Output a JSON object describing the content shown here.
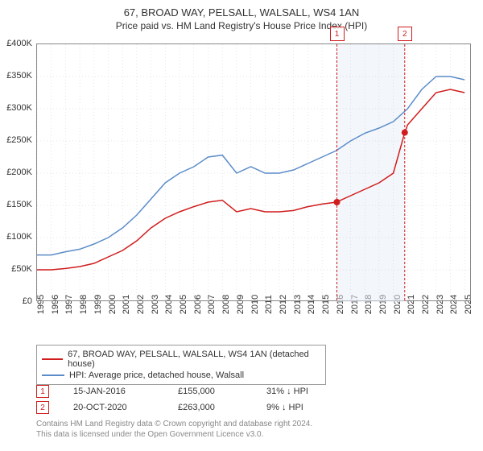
{
  "title": "67, BROAD WAY, PELSALL, WALSALL, WS4 1AN",
  "subtitle": "Price paid vs. HM Land Registry's House Price Index (HPI)",
  "chart": {
    "type": "line",
    "background_color": "#ffffff",
    "grid_color": "#aaaaaa",
    "xlim": [
      1995,
      2025.5
    ],
    "ylim": [
      0,
      400000
    ],
    "ytick_step": 50000,
    "ytick_labels": [
      "£0",
      "£50K",
      "£100K",
      "£150K",
      "£200K",
      "£250K",
      "£300K",
      "£350K",
      "£400K"
    ],
    "xticks": [
      1995,
      1996,
      1997,
      1998,
      1999,
      2000,
      2001,
      2002,
      2003,
      2004,
      2005,
      2006,
      2007,
      2008,
      2009,
      2010,
      2011,
      2012,
      2013,
      2014,
      2015,
      2016,
      2017,
      2018,
      2019,
      2020,
      2021,
      2022,
      2023,
      2024,
      2025
    ],
    "title_fontsize": 13,
    "label_fontsize": 11,
    "series": [
      {
        "name": "price_paid",
        "label": "67, BROAD WAY, PELSALL, WALSALL, WS4 1AN (detached house)",
        "color": "#d01c1c",
        "line_width": 1.5,
        "points": [
          [
            1995,
            50000
          ],
          [
            1996,
            50000
          ],
          [
            1997,
            52000
          ],
          [
            1998,
            55000
          ],
          [
            1999,
            60000
          ],
          [
            2000,
            70000
          ],
          [
            2001,
            80000
          ],
          [
            2002,
            95000
          ],
          [
            2003,
            115000
          ],
          [
            2004,
            130000
          ],
          [
            2005,
            140000
          ],
          [
            2006,
            148000
          ],
          [
            2007,
            155000
          ],
          [
            2008,
            158000
          ],
          [
            2009,
            140000
          ],
          [
            2010,
            145000
          ],
          [
            2011,
            140000
          ],
          [
            2012,
            140000
          ],
          [
            2013,
            142000
          ],
          [
            2014,
            148000
          ],
          [
            2015,
            152000
          ],
          [
            2016,
            155000
          ],
          [
            2017,
            165000
          ],
          [
            2018,
            175000
          ],
          [
            2019,
            185000
          ],
          [
            2020,
            200000
          ],
          [
            2020.8,
            263000
          ],
          [
            2021,
            275000
          ],
          [
            2022,
            300000
          ],
          [
            2023,
            325000
          ],
          [
            2024,
            330000
          ],
          [
            2025,
            325000
          ]
        ]
      },
      {
        "name": "hpi",
        "label": "HPI: Average price, detached house, Walsall",
        "color": "#5b8cc9",
        "line_width": 1.5,
        "points": [
          [
            1995,
            73000
          ],
          [
            1996,
            73000
          ],
          [
            1997,
            78000
          ],
          [
            1998,
            82000
          ],
          [
            1999,
            90000
          ],
          [
            2000,
            100000
          ],
          [
            2001,
            115000
          ],
          [
            2002,
            135000
          ],
          [
            2003,
            160000
          ],
          [
            2004,
            185000
          ],
          [
            2005,
            200000
          ],
          [
            2006,
            210000
          ],
          [
            2007,
            225000
          ],
          [
            2008,
            228000
          ],
          [
            2009,
            200000
          ],
          [
            2010,
            210000
          ],
          [
            2011,
            200000
          ],
          [
            2012,
            200000
          ],
          [
            2013,
            205000
          ],
          [
            2014,
            215000
          ],
          [
            2015,
            225000
          ],
          [
            2016,
            235000
          ],
          [
            2017,
            250000
          ],
          [
            2018,
            262000
          ],
          [
            2019,
            270000
          ],
          [
            2020,
            280000
          ],
          [
            2021,
            300000
          ],
          [
            2022,
            330000
          ],
          [
            2023,
            350000
          ],
          [
            2024,
            350000
          ],
          [
            2025,
            345000
          ]
        ]
      }
    ],
    "markers": [
      {
        "id": "1",
        "x": 2016.04,
        "color": "#d01c1c",
        "dot_y": 155000
      },
      {
        "id": "2",
        "x": 2020.8,
        "color": "#d01c1c",
        "dot_y": 263000
      }
    ],
    "shaded": {
      "from": 2016.04,
      "to": 2020.8,
      "color": "#e8eef7",
      "opacity": 0.5
    }
  },
  "transactions": [
    {
      "id": "1",
      "date": "15-JAN-2016",
      "price": "£155,000",
      "delta": "31% ↓ HPI",
      "color": "#d01c1c"
    },
    {
      "id": "2",
      "date": "20-OCT-2020",
      "price": "£263,000",
      "delta": "9% ↓ HPI",
      "color": "#d01c1c"
    }
  ],
  "footer": {
    "line1": "Contains HM Land Registry data © Crown copyright and database right 2024.",
    "line2": "This data is licensed under the Open Government Licence v3.0."
  }
}
